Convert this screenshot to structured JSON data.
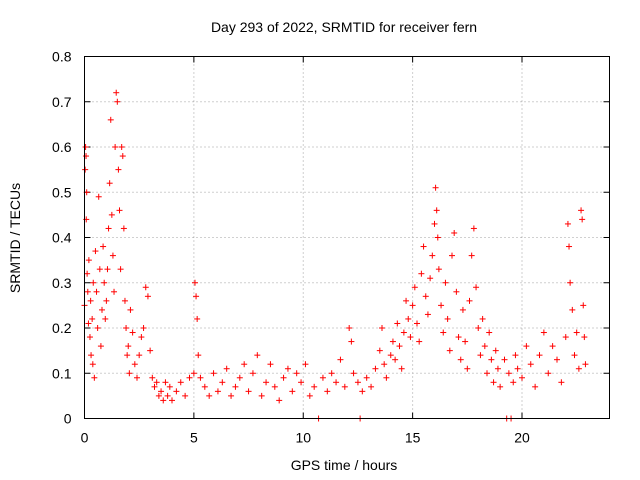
{
  "chart_data": {
    "type": "scatter",
    "title": "Day 293 of 2022, SRMTID for receiver fern",
    "xlabel": "GPS time / hours",
    "ylabel": "SRMTID / TECUs",
    "xlim": [
      0,
      24
    ],
    "ylim": [
      0,
      0.8
    ],
    "xticks": [
      0,
      5,
      10,
      15,
      20
    ],
    "xtick_labels": [
      "0",
      "5",
      "10",
      "15",
      "20"
    ],
    "yticks": [
      0,
      0.1,
      0.2,
      0.3,
      0.4,
      0.5,
      0.6,
      0.7,
      0.8
    ],
    "ytick_labels": [
      "0",
      "0.1",
      "0.2",
      "0.3",
      "0.4",
      "0.5",
      "0.6",
      "0.7",
      "0.8"
    ],
    "grid": true,
    "marker": "+",
    "color": "#ff0000",
    "series": [
      {
        "name": "SRMTID",
        "points": [
          [
            0.0,
            0.25
          ],
          [
            0.03,
            0.55
          ],
          [
            0.05,
            0.6
          ],
          [
            0.07,
            0.58
          ],
          [
            0.08,
            0.44
          ],
          [
            0.1,
            0.5
          ],
          [
            0.12,
            0.32
          ],
          [
            0.15,
            0.28
          ],
          [
            0.18,
            0.21
          ],
          [
            0.2,
            0.35
          ],
          [
            0.25,
            0.18
          ],
          [
            0.28,
            0.26
          ],
          [
            0.3,
            0.14
          ],
          [
            0.35,
            0.22
          ],
          [
            0.38,
            0.12
          ],
          [
            0.4,
            0.3
          ],
          [
            0.45,
            0.09
          ],
          [
            0.5,
            0.37
          ],
          [
            0.55,
            0.28
          ],
          [
            0.6,
            0.2
          ],
          [
            0.65,
            0.49
          ],
          [
            0.7,
            0.33
          ],
          [
            0.75,
            0.16
          ],
          [
            0.8,
            0.24
          ],
          [
            0.85,
            0.38
          ],
          [
            0.9,
            0.3
          ],
          [
            0.95,
            0.22
          ],
          [
            1.0,
            0.26
          ],
          [
            1.05,
            0.33
          ],
          [
            1.1,
            0.42
          ],
          [
            1.15,
            0.52
          ],
          [
            1.2,
            0.66
          ],
          [
            1.25,
            0.45
          ],
          [
            1.3,
            0.36
          ],
          [
            1.35,
            0.28
          ],
          [
            1.4,
            0.6
          ],
          [
            1.45,
            0.72
          ],
          [
            1.5,
            0.7
          ],
          [
            1.55,
            0.55
          ],
          [
            1.6,
            0.46
          ],
          [
            1.65,
            0.33
          ],
          [
            1.7,
            0.6
          ],
          [
            1.75,
            0.58
          ],
          [
            1.8,
            0.42
          ],
          [
            1.85,
            0.26
          ],
          [
            1.9,
            0.2
          ],
          [
            1.95,
            0.14
          ],
          [
            2.0,
            0.16
          ],
          [
            2.05,
            0.1
          ],
          [
            2.1,
            0.24
          ],
          [
            2.2,
            0.19
          ],
          [
            2.3,
            0.12
          ],
          [
            2.4,
            0.09
          ],
          [
            2.5,
            0.14
          ],
          [
            2.6,
            0.18
          ],
          [
            2.7,
            0.2
          ],
          [
            2.8,
            0.29
          ],
          [
            2.9,
            0.27
          ],
          [
            3.0,
            0.15
          ],
          [
            3.1,
            0.09
          ],
          [
            3.2,
            0.07
          ],
          [
            3.3,
            0.08
          ],
          [
            3.4,
            0.05
          ],
          [
            3.5,
            0.06
          ],
          [
            3.6,
            0.04
          ],
          [
            3.7,
            0.08
          ],
          [
            3.8,
            0.05
          ],
          [
            3.9,
            0.07
          ],
          [
            4.0,
            0.04
          ],
          [
            4.2,
            0.06
          ],
          [
            4.4,
            0.08
          ],
          [
            4.6,
            0.05
          ],
          [
            4.8,
            0.09
          ],
          [
            5.0,
            0.1
          ],
          [
            5.05,
            0.3
          ],
          [
            5.1,
            0.27
          ],
          [
            5.15,
            0.22
          ],
          [
            5.2,
            0.14
          ],
          [
            5.3,
            0.09
          ],
          [
            5.5,
            0.07
          ],
          [
            5.7,
            0.05
          ],
          [
            5.9,
            0.1
          ],
          [
            6.1,
            0.06
          ],
          [
            6.3,
            0.08
          ],
          [
            6.5,
            0.11
          ],
          [
            6.7,
            0.05
          ],
          [
            6.9,
            0.07
          ],
          [
            7.1,
            0.09
          ],
          [
            7.3,
            0.12
          ],
          [
            7.5,
            0.06
          ],
          [
            7.7,
            0.1
          ],
          [
            7.9,
            0.14
          ],
          [
            8.1,
            0.05
          ],
          [
            8.3,
            0.08
          ],
          [
            8.5,
            0.12
          ],
          [
            8.7,
            0.07
          ],
          [
            8.9,
            0.04
          ],
          [
            9.1,
            0.09
          ],
          [
            9.3,
            0.11
          ],
          [
            9.5,
            0.06
          ],
          [
            9.7,
            0.1
          ],
          [
            9.9,
            0.08
          ],
          [
            10.1,
            0.12
          ],
          [
            10.3,
            0.05
          ],
          [
            10.5,
            0.07
          ],
          [
            10.7,
            0.0
          ],
          [
            10.9,
            0.09
          ],
          [
            11.1,
            0.06
          ],
          [
            11.3,
            0.1
          ],
          [
            11.5,
            0.08
          ],
          [
            11.7,
            0.13
          ],
          [
            11.9,
            0.07
          ],
          [
            12.1,
            0.2
          ],
          [
            12.2,
            0.17
          ],
          [
            12.3,
            0.1
          ],
          [
            12.5,
            0.08
          ],
          [
            12.6,
            0.0
          ],
          [
            12.7,
            0.06
          ],
          [
            12.9,
            0.09
          ],
          [
            13.1,
            0.07
          ],
          [
            13.3,
            0.11
          ],
          [
            13.5,
            0.15
          ],
          [
            13.6,
            0.2
          ],
          [
            13.7,
            0.12
          ],
          [
            13.8,
            0.09
          ],
          [
            14.0,
            0.14
          ],
          [
            14.1,
            0.17
          ],
          [
            14.2,
            0.13
          ],
          [
            14.3,
            0.21
          ],
          [
            14.4,
            0.16
          ],
          [
            14.5,
            0.11
          ],
          [
            14.6,
            0.19
          ],
          [
            14.7,
            0.26
          ],
          [
            14.8,
            0.22
          ],
          [
            14.9,
            0.18
          ],
          [
            15.0,
            0.25
          ],
          [
            15.1,
            0.29
          ],
          [
            15.2,
            0.21
          ],
          [
            15.3,
            0.17
          ],
          [
            15.4,
            0.32
          ],
          [
            15.5,
            0.38
          ],
          [
            15.6,
            0.27
          ],
          [
            15.7,
            0.23
          ],
          [
            15.8,
            0.31
          ],
          [
            15.9,
            0.36
          ],
          [
            16.0,
            0.43
          ],
          [
            16.05,
            0.51
          ],
          [
            16.1,
            0.46
          ],
          [
            16.15,
            0.4
          ],
          [
            16.2,
            0.33
          ],
          [
            16.3,
            0.25
          ],
          [
            16.4,
            0.19
          ],
          [
            16.5,
            0.3
          ],
          [
            16.6,
            0.22
          ],
          [
            16.7,
            0.15
          ],
          [
            16.8,
            0.36
          ],
          [
            16.9,
            0.41
          ],
          [
            17.0,
            0.28
          ],
          [
            17.1,
            0.18
          ],
          [
            17.2,
            0.13
          ],
          [
            17.3,
            0.24
          ],
          [
            17.4,
            0.17
          ],
          [
            17.5,
            0.11
          ],
          [
            17.6,
            0.26
          ],
          [
            17.7,
            0.36
          ],
          [
            17.8,
            0.42
          ],
          [
            17.9,
            0.29
          ],
          [
            18.0,
            0.2
          ],
          [
            18.1,
            0.14
          ],
          [
            18.2,
            0.22
          ],
          [
            18.3,
            0.16
          ],
          [
            18.4,
            0.1
          ],
          [
            18.5,
            0.19
          ],
          [
            18.6,
            0.13
          ],
          [
            18.7,
            0.08
          ],
          [
            18.8,
            0.15
          ],
          [
            18.9,
            0.11
          ],
          [
            19.0,
            0.07
          ],
          [
            19.2,
            0.13
          ],
          [
            19.3,
            0.0
          ],
          [
            19.4,
            0.1
          ],
          [
            19.5,
            0.0
          ],
          [
            19.6,
            0.08
          ],
          [
            19.7,
            0.14
          ],
          [
            19.8,
            0.11
          ],
          [
            20.0,
            0.09
          ],
          [
            20.2,
            0.16
          ],
          [
            20.4,
            0.12
          ],
          [
            20.6,
            0.07
          ],
          [
            20.8,
            0.14
          ],
          [
            21.0,
            0.19
          ],
          [
            21.2,
            0.1
          ],
          [
            21.4,
            0.16
          ],
          [
            21.6,
            0.13
          ],
          [
            21.8,
            0.08
          ],
          [
            22.0,
            0.18
          ],
          [
            22.1,
            0.43
          ],
          [
            22.15,
            0.38
          ],
          [
            22.2,
            0.3
          ],
          [
            22.3,
            0.24
          ],
          [
            22.4,
            0.14
          ],
          [
            22.5,
            0.19
          ],
          [
            22.6,
            0.11
          ],
          [
            22.7,
            0.46
          ],
          [
            22.75,
            0.44
          ],
          [
            22.8,
            0.25
          ],
          [
            22.85,
            0.18
          ],
          [
            22.9,
            0.12
          ]
        ]
      }
    ]
  }
}
